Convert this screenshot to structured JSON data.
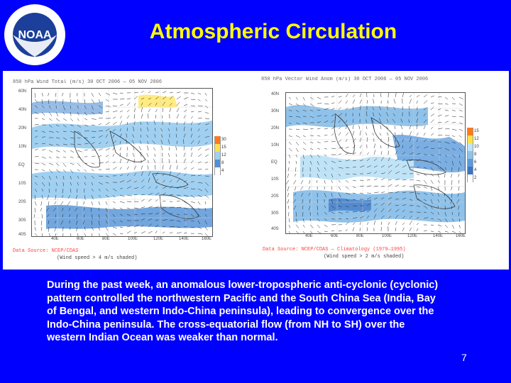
{
  "slide": {
    "title": "Atmospheric Circulation",
    "page_number": "7",
    "summary": "During the past week, an anomalous lower-tropospheric anti-cyclonic (cyclonic) pattern controlled the northwestern Pacific and the South China Sea (India, Bay of Bengal, and western Indo-China peninsula), leading to convergence over the Indo-China peninsula. The cross-equatorial flow (from NH to SH) over the western Indian Ocean was weaker than normal."
  },
  "logo": {
    "name": "NOAA",
    "ring_text": "NATIONAL OCEANIC AND ATMOSPHERIC ADMINISTRATION · U.S. DEPARTMENT OF COMMERCE"
  },
  "left_map": {
    "header": "850 hPa Wind  Total (m/s)  30 OCT 2006 — 05 NOV 2006",
    "lat_labels": [
      "60N",
      "40N",
      "20N",
      "10N",
      "EQ",
      "10S",
      "20S",
      "30S",
      "40S"
    ],
    "lon_labels": [
      "40E",
      "60E",
      "80E",
      "100E",
      "120E",
      "140E",
      "160E"
    ],
    "legend_labels": [
      "30",
      "15",
      "12",
      "8",
      "4"
    ],
    "legend_colors": [
      "#ff7a1a",
      "#ffe24a",
      "#9fd0f2",
      "#4f90d6",
      "#ffffff"
    ],
    "source_line1": "Data Source: NCEP/CDAS",
    "source_line2": "(Wind speed > 4 m/s shaded)"
  },
  "right_map": {
    "header": "850 hPa Vector Wind  Anom (m/s)  30 OCT 2006 — 05 NOV 2006",
    "lat_labels": [
      "40N",
      "30N",
      "20N",
      "10N",
      "EQ",
      "10S",
      "20S",
      "30S",
      "40S"
    ],
    "lon_labels": [
      "40E",
      "60E",
      "80E",
      "100E",
      "120E",
      "140E",
      "160E"
    ],
    "legend_labels": [
      "15",
      "12",
      "10",
      "8",
      "6",
      "4",
      "2"
    ],
    "legend_colors": [
      "#ff7a1a",
      "#ffe24a",
      "#bfe3f7",
      "#8fc2ea",
      "#5a9bdc",
      "#3b74c4",
      "#ffffff"
    ],
    "source_line1": "Data Source: NCEP/CDAS — Climatology (1979—1995)",
    "source_line2": "(Wind speed > 2 m/s shaded)"
  },
  "colors": {
    "background": "#0000ff",
    "title": "#ffff00",
    "text": "#ffffff"
  }
}
